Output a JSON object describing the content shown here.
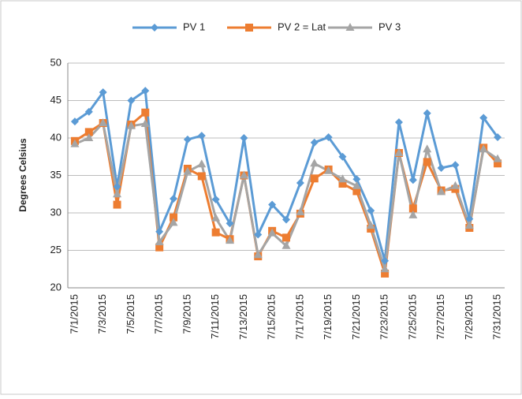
{
  "chart_data": {
    "type": "line",
    "ylabel": "Degrees Celsius",
    "categories": [
      "7/1/2015",
      null,
      "7/3/2015",
      null,
      "7/5/2015",
      null,
      "7/7/2015",
      null,
      "7/9/2015",
      null,
      "7/11/2015",
      null,
      "7/13/2015",
      null,
      "7/15/2015",
      null,
      "7/17/2015",
      null,
      "7/19/2015",
      null,
      "7/21/2015",
      null,
      "7/23/2015",
      null,
      "7/25/2015",
      null,
      "7/27/2015",
      null,
      "7/29/2015",
      null,
      "7/31/2015"
    ],
    "series": [
      {
        "name": "PV 1",
        "color": "#5b9bd5",
        "marker": "diamond",
        "values": [
          42.2,
          43.5,
          46.1,
          33.5,
          45.0,
          46.3,
          27.5,
          31.9,
          39.8,
          40.3,
          31.8,
          28.6,
          40.0,
          27.1,
          31.1,
          29.1,
          34.0,
          39.4,
          40.1,
          37.5,
          34.5,
          30.3,
          23.6,
          42.1,
          34.4,
          43.3,
          36.0,
          36.4,
          29.2,
          42.7,
          40.1
        ]
      },
      {
        "name": "PV 2 = Lat",
        "color": "#ed7d31",
        "marker": "square",
        "values": [
          39.6,
          40.8,
          42.0,
          31.1,
          41.8,
          43.4,
          25.4,
          29.4,
          35.9,
          34.9,
          27.4,
          26.5,
          35.0,
          24.2,
          27.6,
          26.7,
          29.9,
          34.6,
          35.8,
          33.9,
          32.9,
          27.9,
          21.9,
          38.0,
          30.6,
          36.8,
          33.0,
          33.2,
          28.0,
          38.7,
          36.6
        ]
      },
      {
        "name": "PV 3",
        "color": "#a5a5a5",
        "marker": "triangle",
        "values": [
          39.2,
          40.0,
          42.0,
          32.5,
          41.6,
          41.9,
          26.1,
          28.7,
          35.5,
          36.5,
          29.3,
          26.3,
          35.0,
          24.4,
          27.3,
          25.6,
          30.1,
          36.6,
          35.6,
          34.5,
          33.6,
          28.3,
          22.5,
          38.0,
          29.7,
          38.5,
          32.8,
          33.6,
          28.3,
          38.5,
          37.2
        ]
      }
    ],
    "ylim": [
      20,
      50
    ],
    "yticks": [
      20,
      25,
      30,
      35,
      40,
      45,
      50
    ],
    "grid": true,
    "legend": "top"
  }
}
